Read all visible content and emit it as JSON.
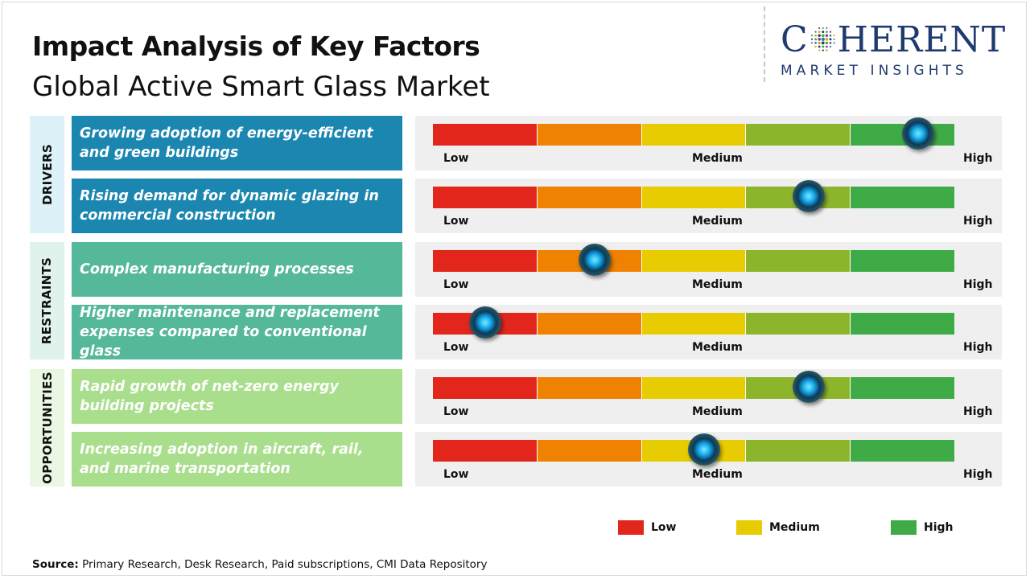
{
  "title": "Impact Analysis of Key Factors",
  "subtitle": "Global Active Smart Glass Market",
  "logo": {
    "word_start": "C",
    "word_end": "HERENT",
    "tagline": "MARKET INSIGHTS"
  },
  "colors": {
    "low": "#e2261b",
    "low_mid": "#ef8200",
    "medium": "#e6cc00",
    "mid_high": "#8cb52b",
    "high": "#3fab46",
    "drivers": "#1b87b0",
    "restraints": "#55b89a",
    "opportunities": "#a9de8c",
    "drivers_tab": "#ddf1f8",
    "restraints_tab": "#dff2ec",
    "opportunities_tab": "#eaf7e2"
  },
  "scale_labels": {
    "low": "Low",
    "medium": "Medium",
    "high": "High"
  },
  "legend": [
    {
      "label": "Low",
      "color": "#e2261b"
    },
    {
      "label": "Medium",
      "color": "#e6cc00"
    },
    {
      "label": "High",
      "color": "#3fab46"
    }
  ],
  "source": {
    "label": "Source:",
    "text": "Primary Research, Desk Research, Paid subscriptions, CMI Data Repository"
  },
  "chart_data": {
    "type": "table",
    "scale": [
      "Low",
      "Medium",
      "High"
    ],
    "groups": [
      {
        "name": "DRIVERS",
        "factors": [
          {
            "text": "Growing adoption of energy-efficient and green buildings",
            "impact": 0.93
          },
          {
            "text": "Rising demand for dynamic glazing in commercial construction",
            "impact": 0.72
          }
        ]
      },
      {
        "name": "RESTRAINTS",
        "factors": [
          {
            "text": "Complex manufacturing processes",
            "impact": 0.31
          },
          {
            "text": "Higher maintenance and replacement expenses compared to conventional glass",
            "impact": 0.1
          }
        ]
      },
      {
        "name": "OPPORTUNITIES",
        "factors": [
          {
            "text": "Rapid growth of net-zero energy building projects",
            "impact": 0.72
          },
          {
            "text": "Increasing adoption in aircraft, rail, and marine transportation",
            "impact": 0.52
          }
        ]
      }
    ]
  }
}
